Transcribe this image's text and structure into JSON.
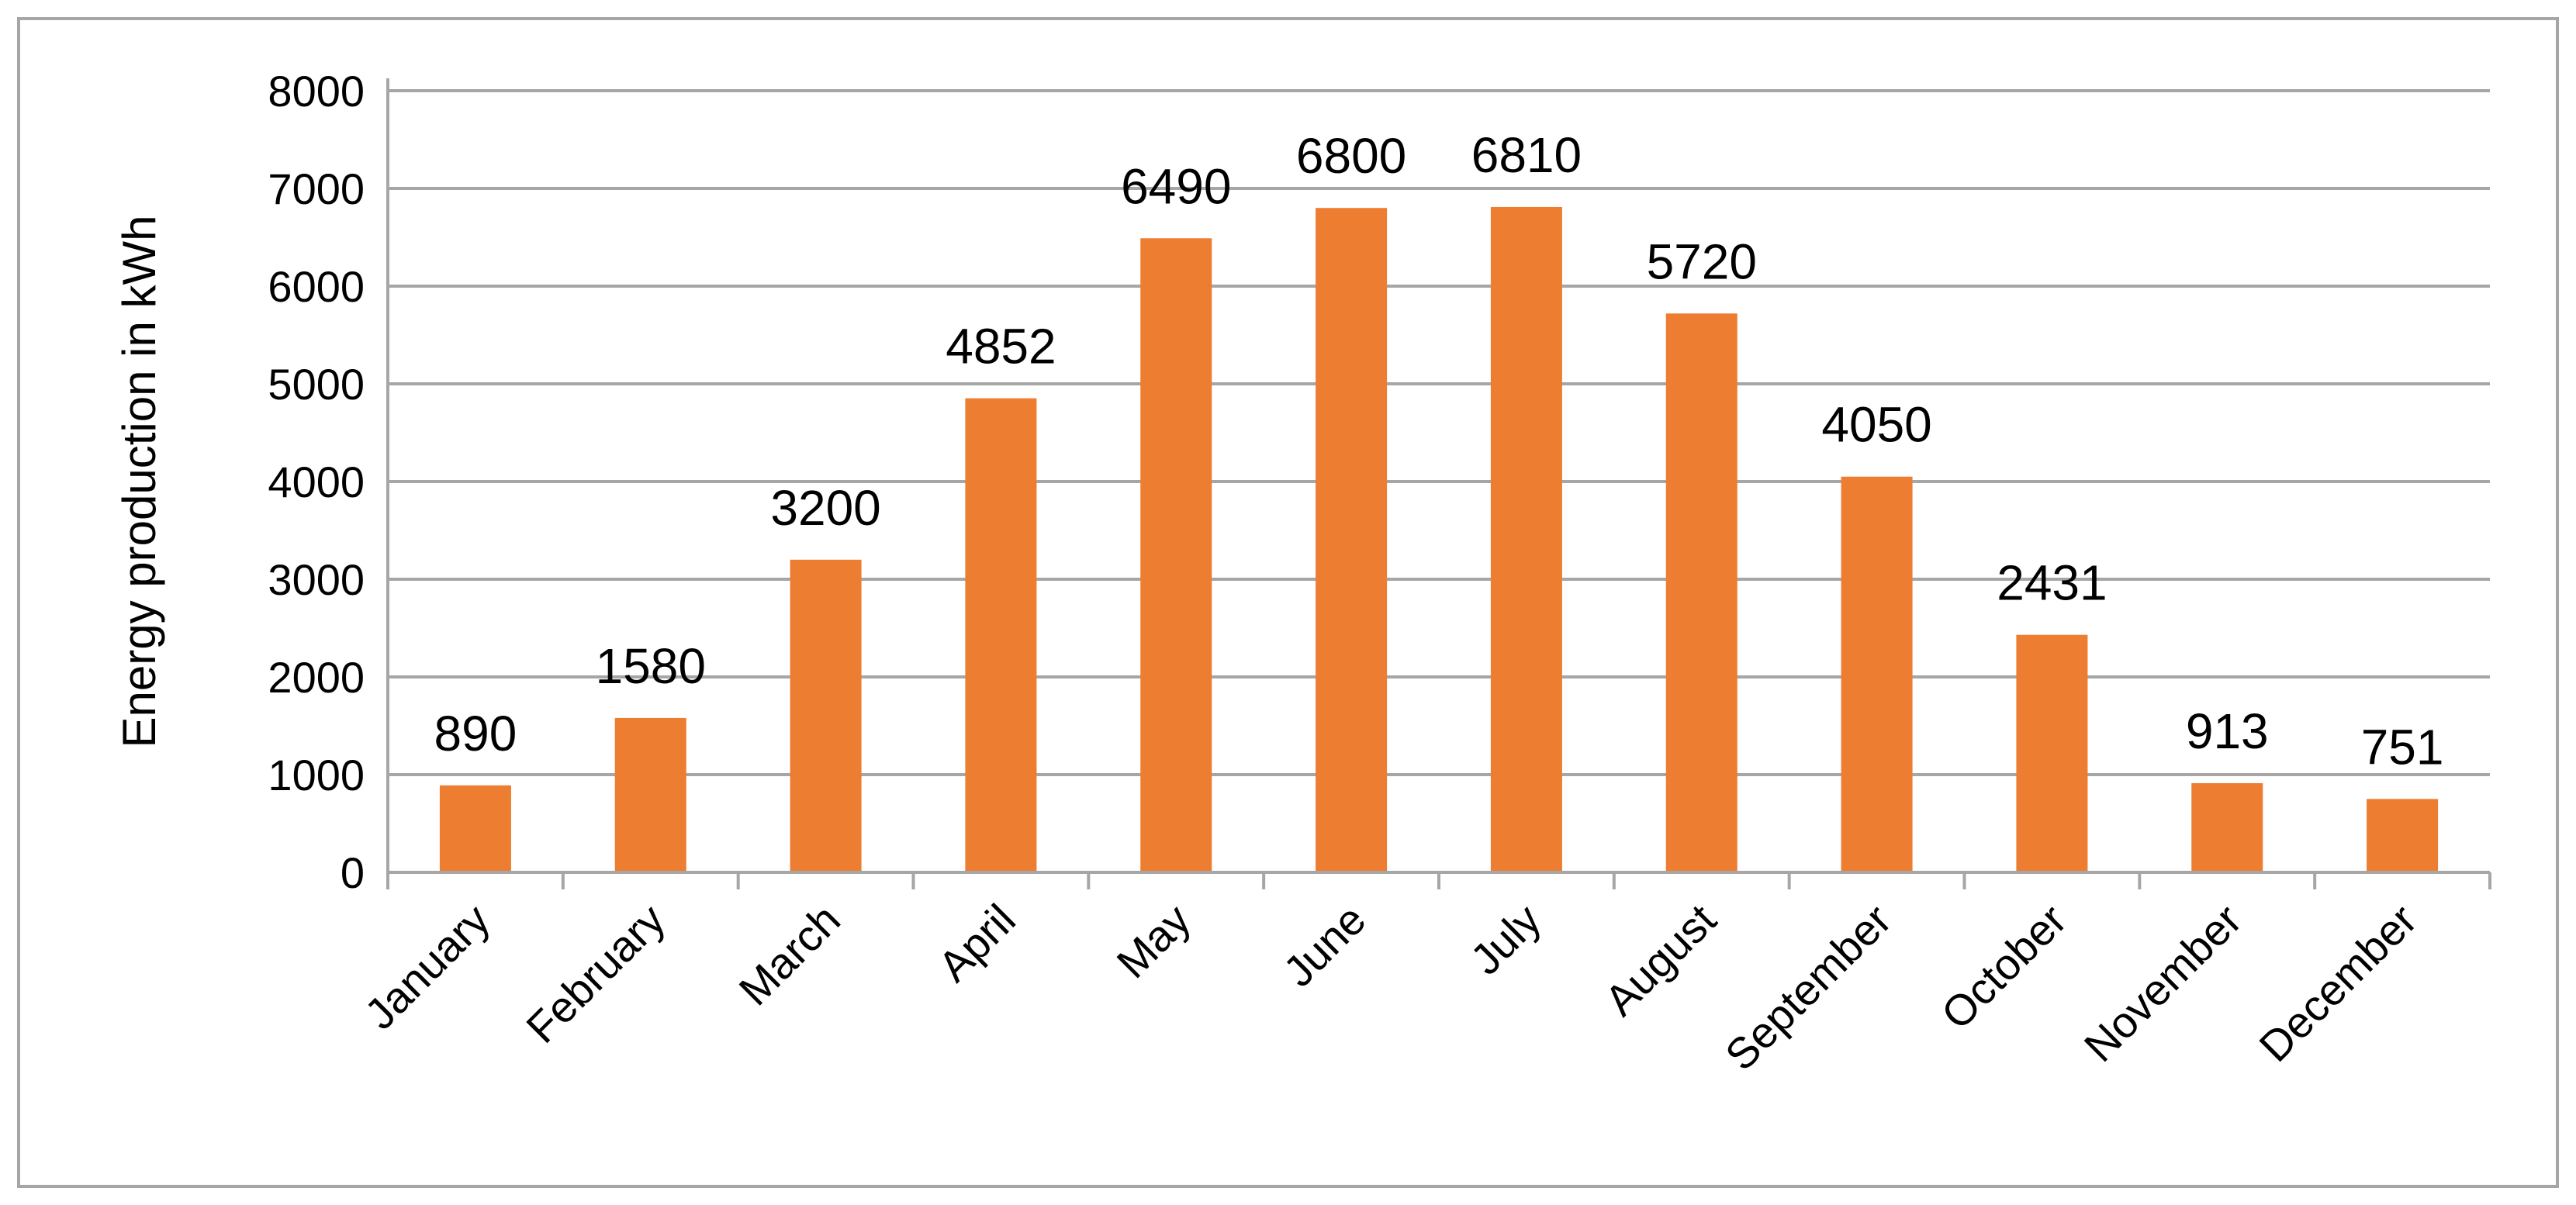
{
  "chart_data": {
    "type": "bar",
    "categories": [
      "January",
      "February",
      "March",
      "April",
      "May",
      "June",
      "July",
      "August",
      "September",
      "October",
      "November",
      "December"
    ],
    "values": [
      890,
      1580,
      3200,
      4852,
      6490,
      6800,
      6810,
      5720,
      4050,
      2431,
      913,
      751
    ],
    "ylabel": "Energy production in kWh",
    "ylim": [
      0,
      8000
    ],
    "yticks": [
      0,
      1000,
      2000,
      3000,
      4000,
      5000,
      6000,
      7000,
      8000
    ],
    "grid": true,
    "bar_color": "#ED7D31",
    "gridline_color": "#A6A6A6",
    "border_color": "#A6A6A6",
    "data_labels": true
  }
}
